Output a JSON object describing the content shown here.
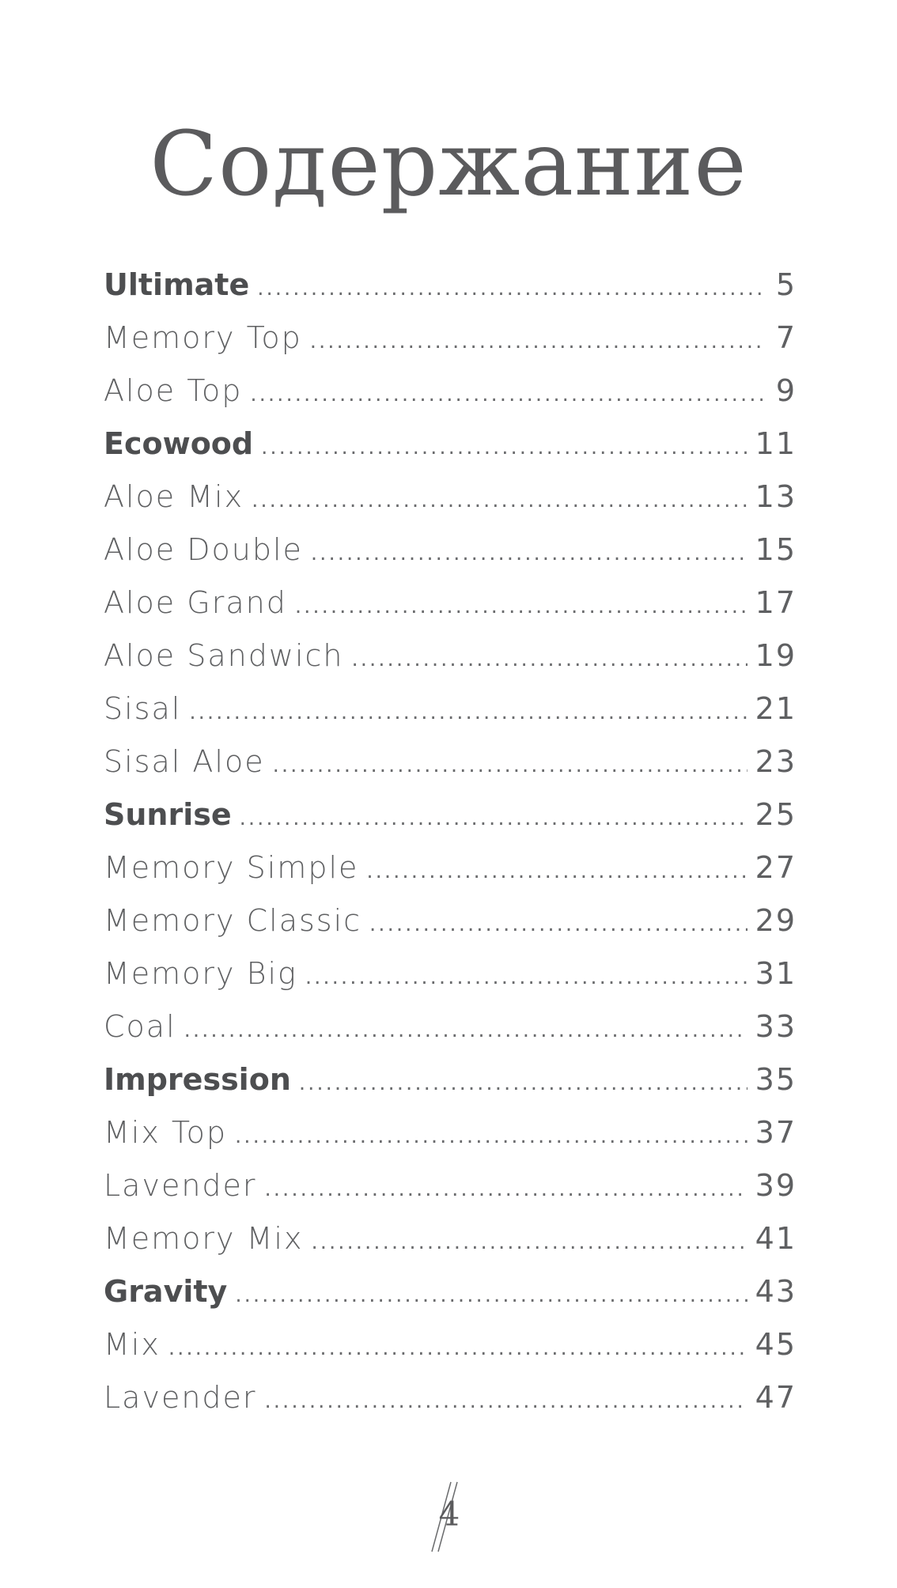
{
  "title": "Содержание",
  "toc": [
    {
      "label": "Ultimate",
      "page": "5",
      "section": true
    },
    {
      "label": "Memory Top",
      "page": "7",
      "section": false
    },
    {
      "label": "Aloe Top",
      "page": "9",
      "section": false
    },
    {
      "label": "Ecowood",
      "page": "11",
      "section": true
    },
    {
      "label": "Aloe Mix",
      "page": "13",
      "section": false
    },
    {
      "label": "Aloe Double",
      "page": "15",
      "section": false
    },
    {
      "label": "Aloe Grand",
      "page": "17",
      "section": false
    },
    {
      "label": "Aloe Sandwich",
      "page": "19",
      "section": false
    },
    {
      "label": "Sisal",
      "page": "21",
      "section": false
    },
    {
      "label": "Sisal Aloe",
      "page": "23",
      "section": false
    },
    {
      "label": "Sunrise",
      "page": "25",
      "section": true
    },
    {
      "label": "Memory Simple",
      "page": "27",
      "section": false
    },
    {
      "label": "Memory Classic",
      "page": "29",
      "section": false
    },
    {
      "label": "Memory Big",
      "page": "31",
      "section": false
    },
    {
      "label": "Coal",
      "page": "33",
      "section": false
    },
    {
      "label": "Impression",
      "page": "35",
      "section": true
    },
    {
      "label": "Mix Top",
      "page": "37",
      "section": false
    },
    {
      "label": "Lavender",
      "page": "39",
      "section": false
    },
    {
      "label": "Memory Mix",
      "page": "41",
      "section": false
    },
    {
      "label": "Gravity",
      "page": "43",
      "section": true
    },
    {
      "label": "Mix",
      "page": "45",
      "section": false
    },
    {
      "label": "Lavender",
      "page": "47",
      "section": false
    }
  ],
  "footer": {
    "page_number": "4"
  },
  "colors": {
    "text": "#58595b",
    "background": "#ffffff"
  }
}
